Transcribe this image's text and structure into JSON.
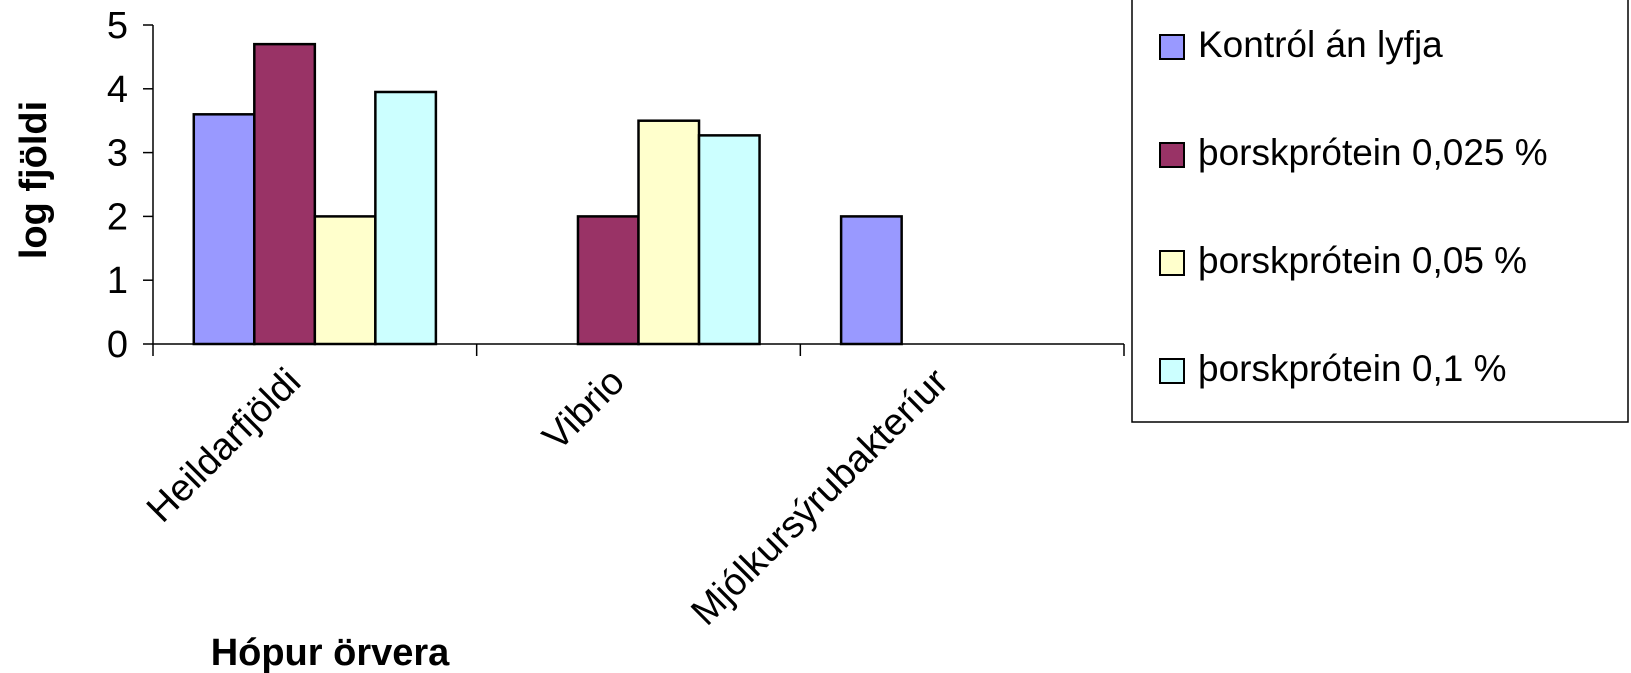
{
  "chart_data": {
    "type": "bar",
    "xlabel": "Hópur örvera",
    "ylabel": "log fjöldi",
    "ylim": [
      0,
      5
    ],
    "yticks": [
      "0",
      "1",
      "2",
      "3",
      "4",
      "5"
    ],
    "categories": [
      "Heildarfjöldi",
      "Vibrio",
      "Mjólkursýrubakteríur"
    ],
    "series": [
      {
        "name": "Kontról án lyfja",
        "color": "#9999ff",
        "values": [
          3.6,
          null,
          2.0
        ]
      },
      {
        "name": "þorskprótein 0,025 %",
        "color": "#993366",
        "values": [
          4.7,
          2.0,
          null
        ]
      },
      {
        "name": "þorskprótein 0,05 %",
        "color": "#ffffcc",
        "values": [
          2.0,
          3.5,
          null
        ]
      },
      {
        "name": "þorskprótein 0,1 %",
        "color": "#ccffff",
        "values": [
          3.95,
          3.27,
          null
        ]
      }
    ],
    "grid": false,
    "legend_position": "right"
  }
}
